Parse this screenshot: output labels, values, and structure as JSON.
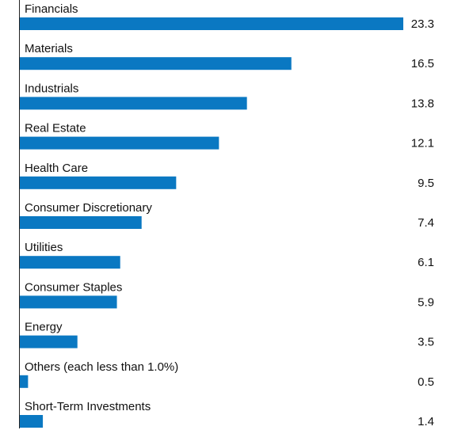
{
  "chart_data": {
    "type": "hbar",
    "categories": [
      "Financials",
      "Materials",
      "Industrials",
      "Real Estate",
      "Health Care",
      "Consumer Discretionary",
      "Utilities",
      "Consumer Staples",
      "Energy",
      "Others (each less than 1.0%)",
      "Short-Term Investments"
    ],
    "values": [
      23.3,
      16.5,
      13.8,
      12.1,
      9.5,
      7.4,
      6.1,
      5.9,
      3.5,
      0.5,
      1.4
    ],
    "color": "#0a78c2"
  }
}
